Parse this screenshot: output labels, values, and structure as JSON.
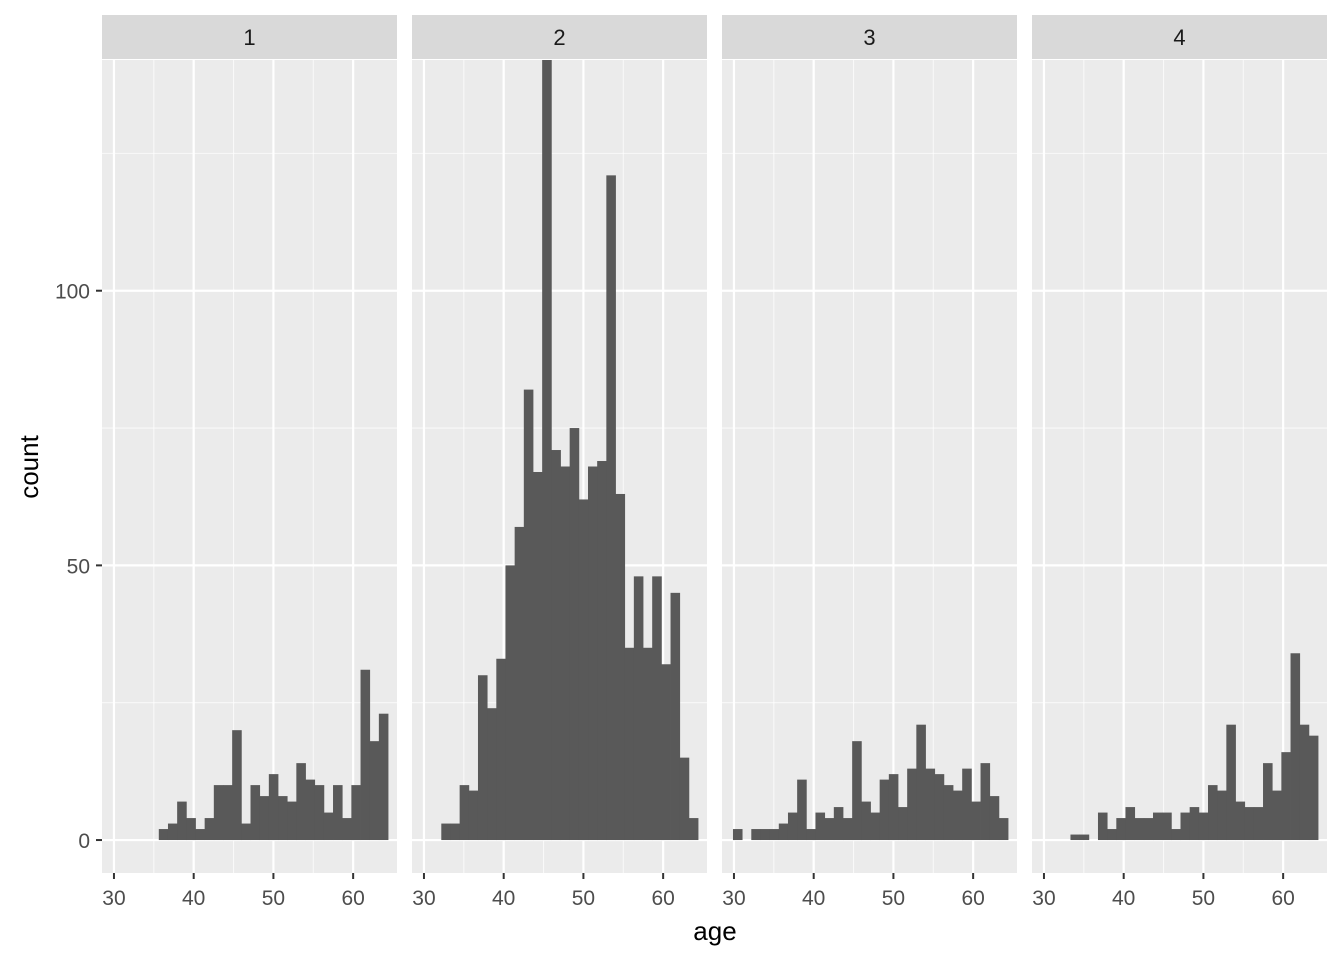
{
  "chart_data": {
    "type": "bar",
    "subtype": "faceted histogram",
    "xlabel": "age",
    "ylabel": "count",
    "xlim": [
      28.5,
      65.5
    ],
    "ylim": [
      -6,
      142
    ],
    "x_ticks": [
      30,
      40,
      50,
      60
    ],
    "y_ticks": [
      0,
      50,
      100
    ],
    "bin_width": 1.15,
    "bin_start": 29.875,
    "colors": {
      "bar": "#595959",
      "panel": "#ebebeb",
      "strip": "#d9d9d9",
      "grid": "#ffffff"
    },
    "grid": true,
    "legend": "none",
    "facets": [
      {
        "label": "1",
        "counts": [
          0,
          0,
          0,
          0,
          0,
          2,
          3,
          7,
          4,
          2,
          4,
          10,
          10,
          20,
          3,
          10,
          8,
          12,
          8,
          7,
          14,
          11,
          10,
          5,
          10,
          4,
          10,
          31,
          18,
          23
        ]
      },
      {
        "label": "2",
        "counts": [
          0,
          0,
          3,
          3,
          10,
          9,
          30,
          24,
          33,
          50,
          57,
          82,
          67,
          142,
          71,
          68,
          75,
          62,
          68,
          69,
          121,
          63,
          35,
          48,
          35,
          48,
          32,
          45,
          15,
          4
        ]
      },
      {
        "label": "3",
        "counts": [
          2,
          0,
          2,
          2,
          2,
          3,
          5,
          11,
          2,
          5,
          4,
          6,
          4,
          18,
          7,
          5,
          11,
          12,
          6,
          13,
          21,
          13,
          12,
          10,
          9,
          13,
          7,
          14,
          8,
          4
        ]
      },
      {
        "label": "4",
        "counts": [
          0,
          0,
          0,
          1,
          1,
          0,
          5,
          2,
          4,
          6,
          4,
          4,
          5,
          5,
          2,
          5,
          6,
          5,
          10,
          9,
          21,
          7,
          6,
          6,
          14,
          9,
          16,
          34,
          21,
          19
        ]
      }
    ]
  }
}
